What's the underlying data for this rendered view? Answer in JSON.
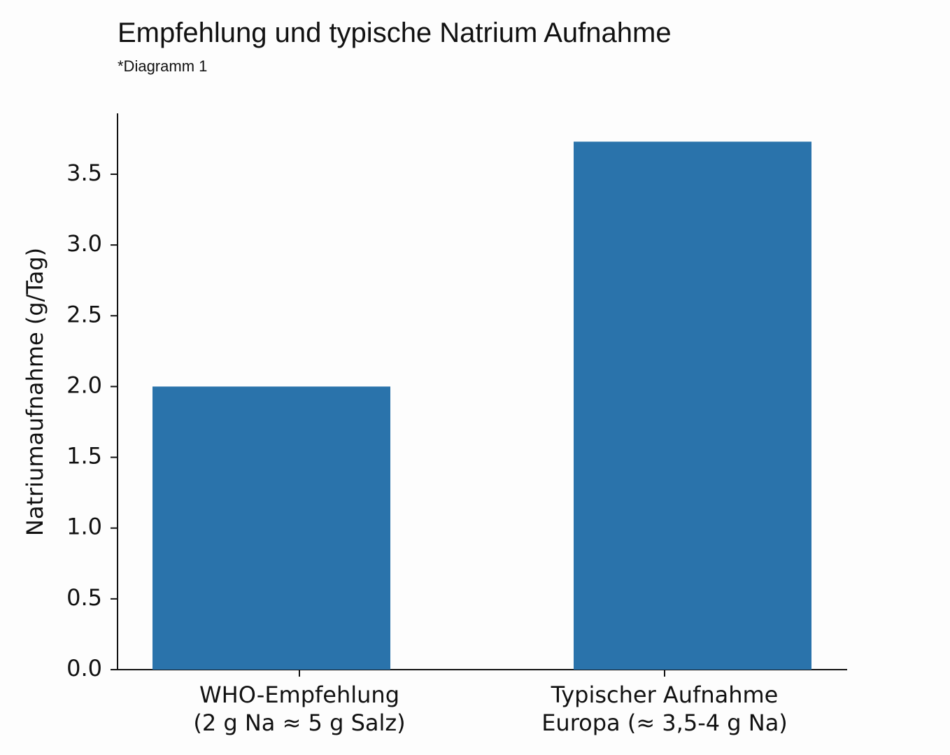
{
  "chart_data": {
    "type": "bar",
    "title": "Empfehlung und typische Natrium Aufnahme",
    "subtitle": "*Diagramm 1",
    "y_label": "Natriumaufnahme (g/Tag)",
    "categories": [
      [
        "WHO-Empfehlung",
        "(2 g Na ≈ 5 g Salz)"
      ],
      [
        "Typischer Aufnahme",
        "Europa (≈ 3,5-4 g Na)"
      ]
    ],
    "values": [
      2.0,
      3.73
    ],
    "color": "#2a73ab",
    "ylim": [
      0,
      3.93
    ],
    "yticks": [
      {
        "value": 0,
        "label": "0.0"
      },
      0.5,
      {
        "value": 1,
        "label": "1.0"
      },
      1.5,
      {
        "value": 2,
        "label": "2.0"
      },
      2.5,
      {
        "value": 3,
        "label": "3.0"
      },
      3.5
    ]
  }
}
